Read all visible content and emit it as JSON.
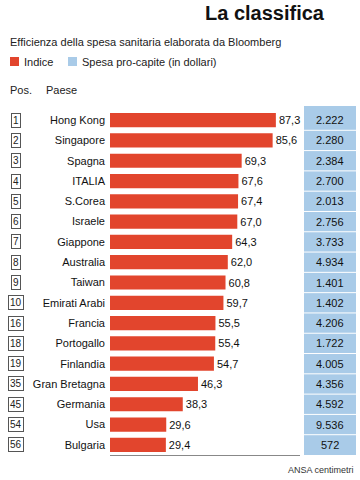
{
  "chart_data": {
    "type": "bar",
    "orientation": "horizontal",
    "title": "La classifica",
    "subtitle": "Efficienza della spesa sanitaria elaborata da Bloomberg",
    "headers": [
      "Pos.",
      "Paese"
    ],
    "source": "ANSA centimetri",
    "positions": [
      1,
      2,
      3,
      4,
      5,
      6,
      7,
      8,
      9,
      10,
      16,
      18,
      19,
      35,
      45,
      54,
      56
    ],
    "categories": [
      "Hong Kong",
      "Singapore",
      "Spagna",
      "ITALIA",
      "S.Corea",
      "Israele",
      "Giappone",
      "Australia",
      "Taiwan",
      "Emirati Arabi",
      "Francia",
      "Portogallo",
      "Finlandia",
      "Gran Bretagna",
      "Germania",
      "Usa",
      "Bulgaria"
    ],
    "series": [
      {
        "name": "Indice",
        "color": "#e2452d",
        "values": [
          87.3,
          85.6,
          69.3,
          67.6,
          67.4,
          67.0,
          64.3,
          62.0,
          60.8,
          59.7,
          55.5,
          55.4,
          54.7,
          46.3,
          38.3,
          29.6,
          29.4
        ],
        "value_labels": [
          "87,3",
          "85,6",
          "69,3",
          "67,6",
          "67,4",
          "67,0",
          "64,3",
          "62,0",
          "60,8",
          "59,7",
          "55,5",
          "55,4",
          "54,7",
          "46,3",
          "38,3",
          "29,6",
          "29,4"
        ]
      }
    ],
    "spending": {
      "name": "Spesa pro-capite (in dollari)",
      "color": "#a9cbe8",
      "values": [
        2222,
        2280,
        2384,
        2700,
        2013,
        2756,
        3733,
        4934,
        1401,
        1402,
        4206,
        1722,
        4005,
        4356,
        4592,
        9536,
        572
      ],
      "value_labels": [
        "2.222",
        "2.280",
        "2.384",
        "2.700",
        "2.013",
        "2.756",
        "3.733",
        "4.934",
        "1.401",
        "1.402",
        "4.206",
        "1.722",
        "4.005",
        "4.356",
        "4.592",
        "9.536",
        "572"
      ]
    },
    "xlim": [
      0,
      100
    ],
    "xticks": [],
    "tick_labels": "y",
    "data_labels": true,
    "grid": false
  }
}
